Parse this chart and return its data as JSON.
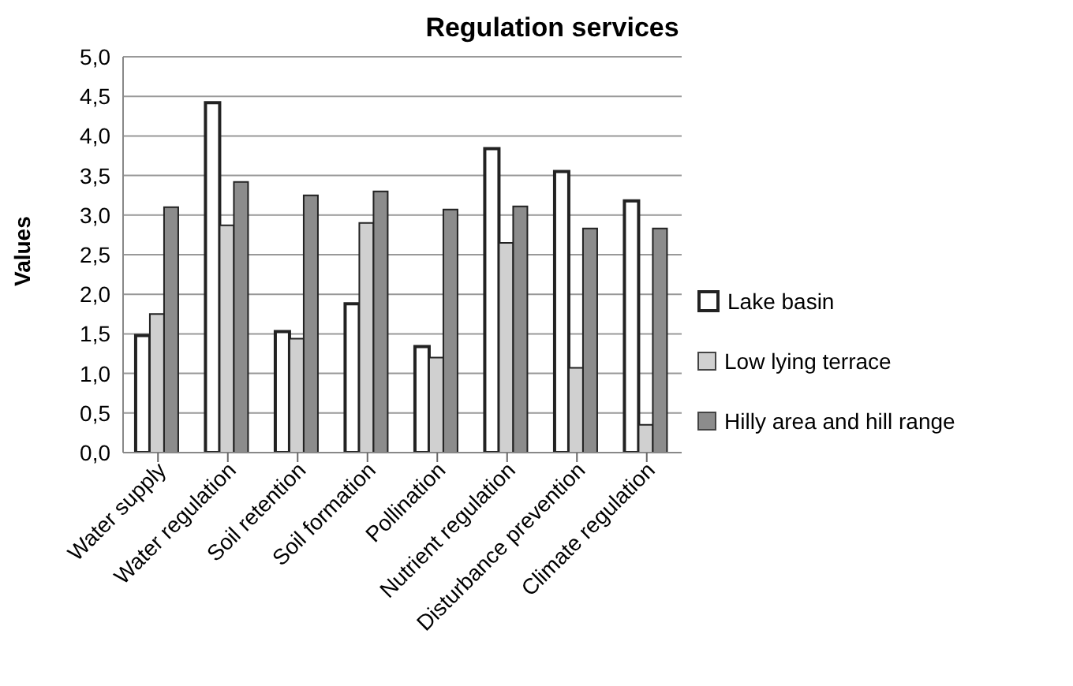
{
  "chart_data": {
    "type": "bar",
    "title": "Regulation services",
    "ylabel": "Values",
    "categories": [
      "Water supply",
      "Water regulation",
      "Soil retention",
      "Soil formation",
      "Pollination",
      "Nutrient regulation",
      "Disturbance prevention",
      "Climate regulation"
    ],
    "series": [
      {
        "name": "Lake basin",
        "color": "#ffffff",
        "values": [
          1.48,
          4.42,
          1.53,
          1.88,
          1.34,
          3.84,
          3.55,
          3.18
        ]
      },
      {
        "name": "Low lying terrace",
        "color": "#d0d0d0",
        "values": [
          1.75,
          2.87,
          1.44,
          2.9,
          1.2,
          2.65,
          1.07,
          0.35
        ]
      },
      {
        "name": "Hilly area and hill range",
        "color": "#8c8c8c",
        "values": [
          3.1,
          3.42,
          3.25,
          3.3,
          3.07,
          3.11,
          2.83,
          2.83
        ]
      }
    ],
    "ylim": [
      0,
      5
    ],
    "yticks": [
      {
        "value": 0,
        "label": "0,0"
      },
      {
        "value": 0.5,
        "label": "0,5"
      },
      {
        "value": 1,
        "label": "1,0"
      },
      {
        "value": 1.5,
        "label": "1,5"
      },
      {
        "value": 2,
        "label": "2,0"
      },
      {
        "value": 2.5,
        "label": "2,5"
      },
      {
        "value": 3,
        "label": "3,0"
      },
      {
        "value": 3.5,
        "label": "3,5"
      },
      {
        "value": 4,
        "label": "4,0"
      },
      {
        "value": 4.5,
        "label": "4,5"
      },
      {
        "value": 5,
        "label": "5,0"
      }
    ],
    "grid": "y",
    "legend": "right"
  }
}
